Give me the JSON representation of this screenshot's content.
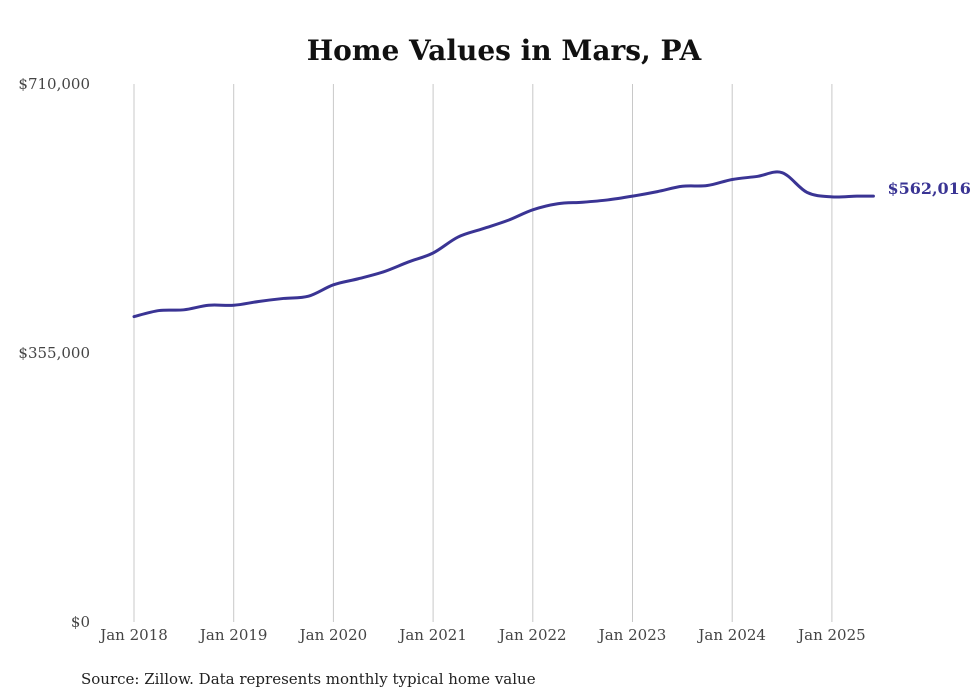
{
  "chart_data": {
    "type": "line",
    "title": "Home Values in Mars, PA",
    "xlabel": "",
    "ylabel": "",
    "ylim": [
      0,
      710000
    ],
    "yticks": [
      {
        "value": 0,
        "label": "$0"
      },
      {
        "value": 355000,
        "label": "$355,000"
      },
      {
        "value": 710000,
        "label": "$710,000"
      }
    ],
    "xticks": [
      {
        "value": "2018-01",
        "label": "Jan 2018"
      },
      {
        "value": "2019-01",
        "label": "Jan 2019"
      },
      {
        "value": "2020-01",
        "label": "Jan 2020"
      },
      {
        "value": "2021-01",
        "label": "Jan 2021"
      },
      {
        "value": "2022-01",
        "label": "Jan 2022"
      },
      {
        "value": "2023-01",
        "label": "Jan 2023"
      },
      {
        "value": "2024-01",
        "label": "Jan 2024"
      },
      {
        "value": "2025-01",
        "label": "Jan 2025"
      }
    ],
    "grid": "vertical",
    "line_color": "#3a3494",
    "end_label": "$562,016",
    "series": [
      {
        "x": [
          "2018-01",
          "2018-04",
          "2018-07",
          "2018-10",
          "2019-01",
          "2019-04",
          "2019-07",
          "2019-10",
          "2020-01",
          "2020-04",
          "2020-07",
          "2020-10",
          "2021-01",
          "2021-04",
          "2021-07",
          "2021-10",
          "2022-01",
          "2022-04",
          "2022-07",
          "2022-10",
          "2023-01",
          "2023-04",
          "2023-07",
          "2023-10",
          "2024-01",
          "2024-04",
          "2024-07",
          "2024-10",
          "2025-01",
          "2025-04",
          "2025-06"
        ],
        "values": [
          403000,
          411000,
          412000,
          418000,
          418000,
          423000,
          427000,
          430000,
          445000,
          453000,
          462000,
          475000,
          487000,
          508000,
          519000,
          530000,
          544000,
          552000,
          554000,
          557000,
          562000,
          568000,
          575000,
          576000,
          584000,
          588000,
          593000,
          567000,
          561000,
          562016,
          562016
        ]
      }
    ]
  },
  "source": "Source: Zillow. Data represents monthly typical home value"
}
